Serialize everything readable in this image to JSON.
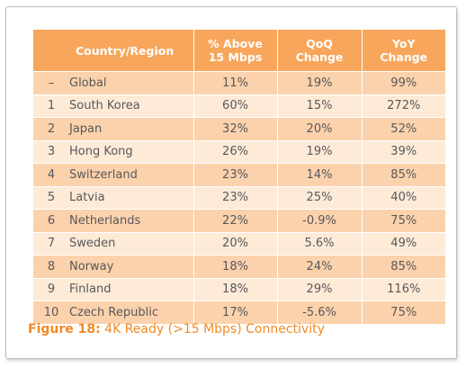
{
  "table": {
    "headers": {
      "country": "Country/Region",
      "pct_line1": "% Above",
      "pct_line2": "15 Mbps",
      "qoq_line1": "QoQ",
      "qoq_line2": "Change",
      "yoy_line1": "YoY",
      "yoy_line2": "Change"
    },
    "rows": [
      {
        "rank": "–",
        "country": "Global",
        "pct": "11%",
        "qoq": "19%",
        "yoy": "99%"
      },
      {
        "rank": "1",
        "country": "South Korea",
        "pct": "60%",
        "qoq": "15%",
        "yoy": "272%"
      },
      {
        "rank": "2",
        "country": "Japan",
        "pct": "32%",
        "qoq": "20%",
        "yoy": "52%"
      },
      {
        "rank": "3",
        "country": "Hong Kong",
        "pct": "26%",
        "qoq": "19%",
        "yoy": "39%"
      },
      {
        "rank": "4",
        "country": "Switzerland",
        "pct": "23%",
        "qoq": "14%",
        "yoy": "85%"
      },
      {
        "rank": "5",
        "country": "Latvia",
        "pct": "23%",
        "qoq": "25%",
        "yoy": "40%"
      },
      {
        "rank": "6",
        "country": "Netherlands",
        "pct": "22%",
        "qoq": "-0.9%",
        "yoy": "75%"
      },
      {
        "rank": "7",
        "country": "Sweden",
        "pct": "20%",
        "qoq": "5.6%",
        "yoy": "49%"
      },
      {
        "rank": "8",
        "country": "Norway",
        "pct": "18%",
        "qoq": "24%",
        "yoy": "85%"
      },
      {
        "rank": "9",
        "country": "Finland",
        "pct": "18%",
        "qoq": "29%",
        "yoy": "116%"
      },
      {
        "rank": "10",
        "country": "Czech Republic",
        "pct": "17%",
        "qoq": "-5.6%",
        "yoy": "75%"
      }
    ]
  },
  "caption": {
    "label": "Figure 18:",
    "text": " 4K Ready (>15 Mbps) Connectivity"
  },
  "colors": {
    "header": "#f7a65b",
    "row_dark": "#fbd2ac",
    "row_light": "#fdebd8",
    "caption": "#f08a24"
  }
}
